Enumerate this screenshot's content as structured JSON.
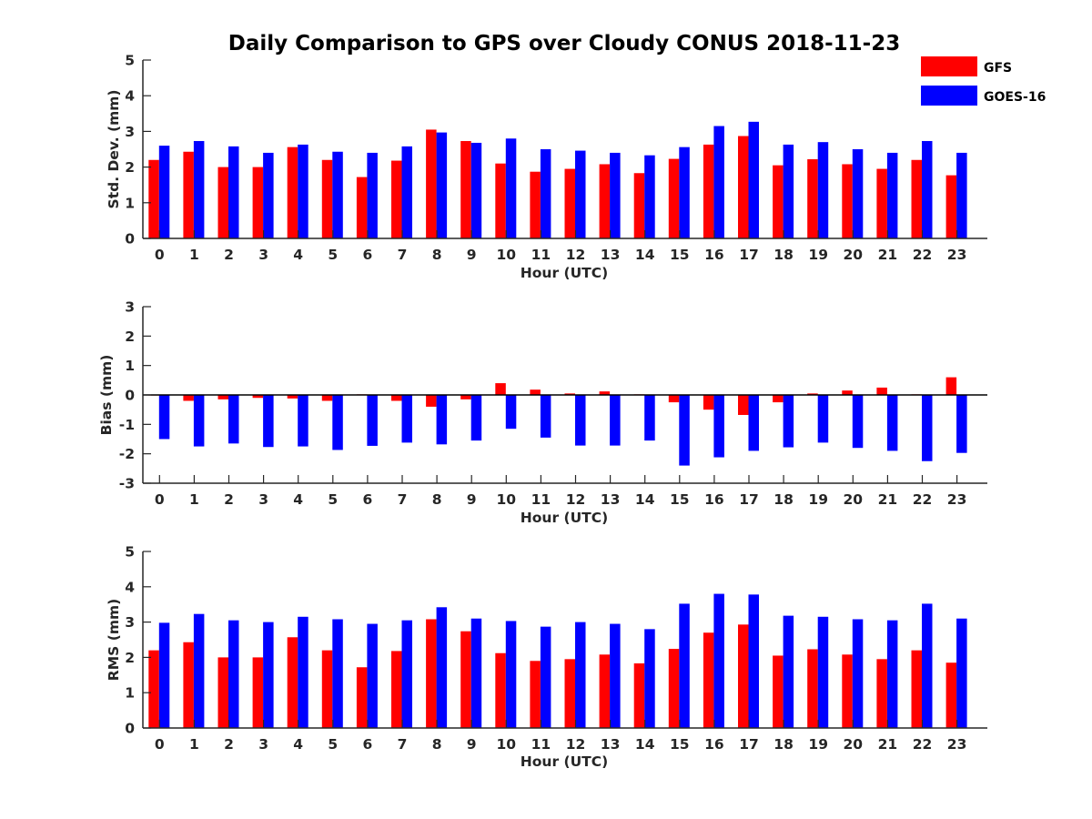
{
  "title": "Daily Comparison to GPS over Cloudy CONUS 2018-11-23",
  "legend": [
    {
      "name": "GFS",
      "color": "#ff0000"
    },
    {
      "name": "GOES-16",
      "color": "#0000ff"
    }
  ],
  "chart_data": [
    {
      "type": "bar",
      "ylabel": "Std. Dev. (mm)",
      "xlabel": "Hour (UTC)",
      "categories": [
        "0",
        "1",
        "2",
        "3",
        "4",
        "5",
        "6",
        "7",
        "8",
        "9",
        "10",
        "11",
        "12",
        "13",
        "14",
        "15",
        "16",
        "17",
        "18",
        "19",
        "20",
        "21",
        "22",
        "23"
      ],
      "ylim": [
        0,
        5
      ],
      "yticks": [
        "0",
        "1",
        "2",
        "3",
        "4",
        "5"
      ],
      "series": [
        {
          "name": "GFS",
          "color": "#ff0000",
          "values": [
            2.2,
            2.43,
            2.0,
            2.0,
            2.56,
            2.2,
            1.72,
            2.18,
            3.05,
            2.73,
            2.1,
            1.87,
            1.95,
            2.08,
            1.83,
            2.23,
            2.63,
            2.87,
            2.05,
            2.22,
            2.08,
            1.95,
            2.2,
            1.77
          ]
        },
        {
          "name": "GOES-16",
          "color": "#0000ff",
          "values": [
            2.6,
            2.73,
            2.58,
            2.4,
            2.63,
            2.43,
            2.4,
            2.58,
            2.97,
            2.68,
            2.8,
            2.5,
            2.46,
            2.4,
            2.33,
            2.56,
            3.15,
            3.27,
            2.63,
            2.7,
            2.5,
            2.4,
            2.73,
            2.4
          ]
        }
      ]
    },
    {
      "type": "bar",
      "ylabel": "Bias (mm)",
      "xlabel": "Hour (UTC)",
      "categories": [
        "0",
        "1",
        "2",
        "3",
        "4",
        "5",
        "6",
        "7",
        "8",
        "9",
        "10",
        "11",
        "12",
        "13",
        "14",
        "15",
        "16",
        "17",
        "18",
        "19",
        "20",
        "21",
        "22",
        "23"
      ],
      "ylim": [
        -3,
        3
      ],
      "yticks": [
        "-3",
        "-2",
        "-1",
        "0",
        "1",
        "2",
        "3"
      ],
      "series": [
        {
          "name": "GFS",
          "color": "#ff0000",
          "values": [
            0.0,
            -0.2,
            -0.15,
            -0.1,
            -0.12,
            -0.2,
            0.02,
            -0.2,
            -0.4,
            -0.15,
            0.4,
            0.18,
            0.05,
            0.12,
            0.02,
            -0.25,
            -0.5,
            -0.68,
            -0.25,
            0.05,
            0.15,
            0.25,
            0.02,
            0.6
          ]
        },
        {
          "name": "GOES-16",
          "color": "#0000ff",
          "values": [
            -1.5,
            -1.75,
            -1.65,
            -1.77,
            -1.75,
            -1.87,
            -1.73,
            -1.62,
            -1.68,
            -1.55,
            -1.15,
            -1.45,
            -1.72,
            -1.72,
            -1.55,
            -2.4,
            -2.12,
            -1.9,
            -1.78,
            -1.62,
            -1.8,
            -1.9,
            -2.25,
            -1.97
          ]
        }
      ]
    },
    {
      "type": "bar",
      "ylabel": "RMS (mm)",
      "xlabel": "Hour (UTC)",
      "categories": [
        "0",
        "1",
        "2",
        "3",
        "4",
        "5",
        "6",
        "7",
        "8",
        "9",
        "10",
        "11",
        "12",
        "13",
        "14",
        "15",
        "16",
        "17",
        "18",
        "19",
        "20",
        "21",
        "22",
        "23"
      ],
      "ylim": [
        0,
        5
      ],
      "yticks": [
        "0",
        "1",
        "2",
        "3",
        "4",
        "5"
      ],
      "series": [
        {
          "name": "GFS",
          "color": "#ff0000",
          "values": [
            2.2,
            2.43,
            2.0,
            2.0,
            2.57,
            2.2,
            1.72,
            2.18,
            3.08,
            2.74,
            2.12,
            1.9,
            1.95,
            2.08,
            1.83,
            2.24,
            2.7,
            2.93,
            2.05,
            2.23,
            2.08,
            1.95,
            2.2,
            1.85
          ]
        },
        {
          "name": "GOES-16",
          "color": "#0000ff",
          "values": [
            2.98,
            3.23,
            3.05,
            3.0,
            3.15,
            3.08,
            2.95,
            3.05,
            3.42,
            3.1,
            3.03,
            2.87,
            3.0,
            2.95,
            2.8,
            3.52,
            3.8,
            3.78,
            3.18,
            3.15,
            3.08,
            3.05,
            3.52,
            3.1
          ]
        }
      ]
    }
  ]
}
